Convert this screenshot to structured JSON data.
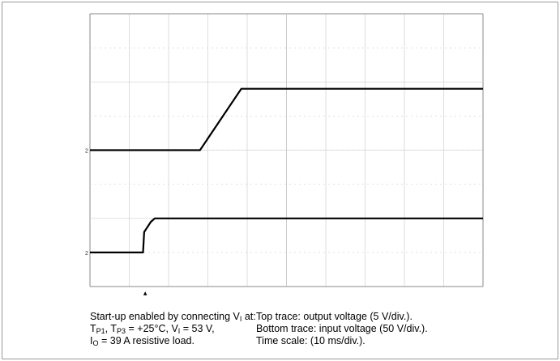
{
  "chart_data": {
    "type": "line",
    "title": "",
    "xlabel": "",
    "ylabel": "",
    "x_divisions": 10,
    "y_divisions": 8,
    "x_units": "div",
    "y_units": "div",
    "xlim": [
      0,
      10
    ],
    "ylim": [
      0,
      8
    ],
    "grid": true,
    "series": [
      {
        "name": "",
        "role": "top-trace",
        "color": "#000000",
        "x": [
          0,
          2.8,
          3.85,
          10
        ],
        "y": [
          4.0,
          4.0,
          5.8,
          5.8
        ]
      },
      {
        "name": "",
        "role": "bottom-trace",
        "color": "#000000",
        "x": [
          0,
          1.35,
          1.38,
          1.55,
          1.65,
          10
        ],
        "y": [
          1.0,
          1.0,
          1.6,
          1.9,
          2.0,
          2.0
        ]
      }
    ],
    "markers": {
      "ground_top_char": "2",
      "ground_bottom_char": "2",
      "trigger_char": "▲"
    }
  },
  "caption": {
    "left": {
      "l1_a": "Start-up enabled by connecting V",
      "l1_sub": "I",
      "l1_b": " at:",
      "l2_a": "T",
      "l2_sub1": "P1",
      "l2_b": ", T",
      "l2_sub2": "P3",
      "l2_c": " = +25°C, V",
      "l2_sub3": "I",
      "l2_d": " = 53 V,",
      "l3_a": "I",
      "l3_sub": "O",
      "l3_b": " = 39 A resistive load."
    },
    "right": {
      "l1": "Top trace: output voltage (5 V/div.).",
      "l2": "Bottom trace: input voltage (50 V/div.).",
      "l3": "Time scale: (10 ms/div.)."
    }
  }
}
